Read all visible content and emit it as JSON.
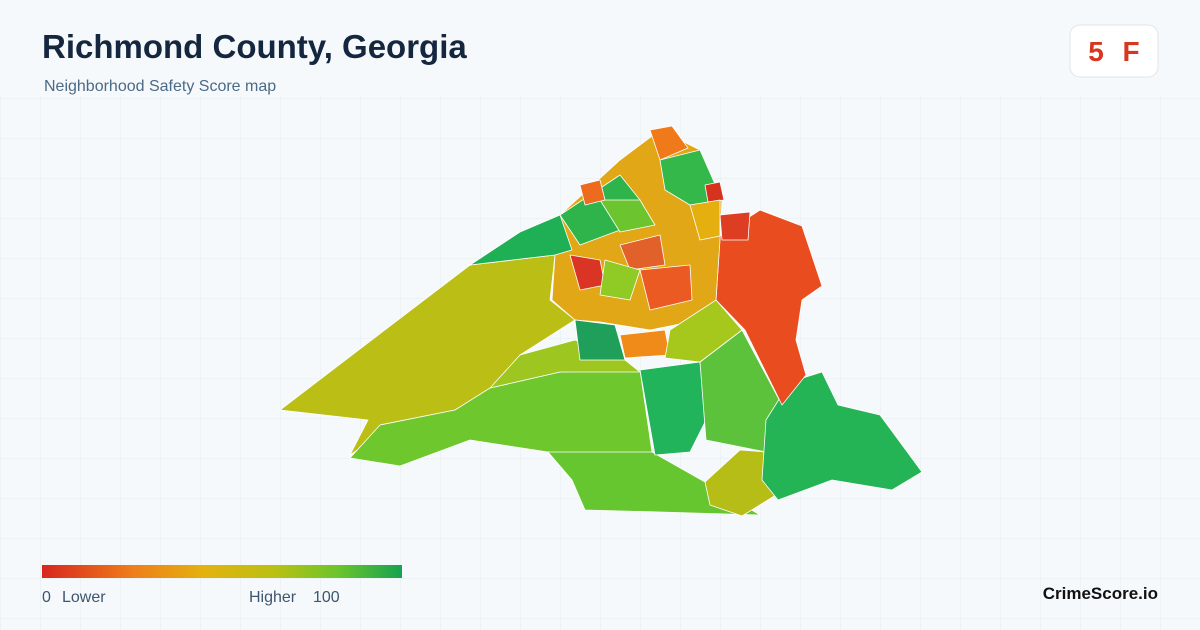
{
  "header": {
    "title": "Richmond County, Georgia",
    "subtitle": "Neighborhood Safety Score map"
  },
  "badge": {
    "score": 5,
    "grade": "F"
  },
  "legend": {
    "min": 0,
    "min_label": "Lower",
    "max_label": "Higher",
    "max": 100
  },
  "brand": "CrimeScore.io"
}
